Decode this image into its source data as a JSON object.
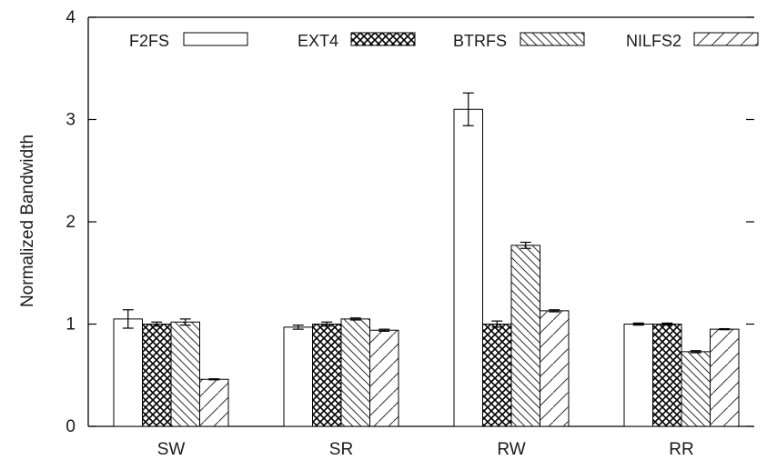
{
  "chart_data": {
    "type": "bar",
    "ylabel": "Normalized Bandwidth",
    "xlabel": "",
    "ylim": [
      0,
      4
    ],
    "yticks": [
      0,
      1,
      2,
      3,
      4
    ],
    "grid": false,
    "legend_position": "top",
    "categories": [
      "SW",
      "SR",
      "RW",
      "RR"
    ],
    "series": [
      {
        "name": "F2FS",
        "pattern": "empty",
        "values": [
          1.05,
          0.97,
          3.1,
          1.0
        ],
        "errors": [
          0.09,
          0.02,
          0.16,
          0.01
        ]
      },
      {
        "name": "EXT4",
        "pattern": "crosshatch",
        "values": [
          1.0,
          1.0,
          1.0,
          1.0
        ],
        "errors": [
          0.02,
          0.02,
          0.03,
          0.01
        ]
      },
      {
        "name": "BTRFS",
        "pattern": "backslash",
        "values": [
          1.02,
          1.05,
          1.77,
          0.73
        ],
        "errors": [
          0.03,
          0.01,
          0.03,
          0.01
        ]
      },
      {
        "name": "NILFS2",
        "pattern": "slash",
        "values": [
          0.46,
          0.94,
          1.13,
          0.95
        ],
        "errors": [
          0.005,
          0.01,
          0.01,
          0.005
        ]
      }
    ]
  }
}
